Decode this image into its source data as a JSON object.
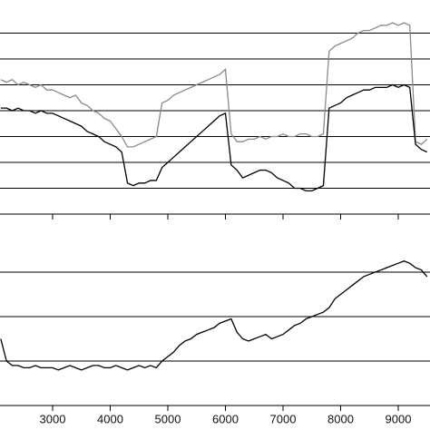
{
  "chart_data": [
    {
      "type": "line",
      "x": [
        2100,
        2200,
        2300,
        2400,
        2500,
        2600,
        2700,
        2800,
        2900,
        3000,
        3100,
        3200,
        3300,
        3400,
        3500,
        3600,
        3700,
        3800,
        3900,
        4000,
        4100,
        4200,
        4300,
        4400,
        4500,
        4600,
        4700,
        4800,
        4900,
        5000,
        5100,
        5200,
        5300,
        5400,
        5500,
        5600,
        5700,
        5800,
        5900,
        6000,
        6100,
        6200,
        6300,
        6400,
        6500,
        6600,
        6700,
        6800,
        6900,
        7000,
        7100,
        7200,
        7300,
        7400,
        7500,
        7600,
        7700,
        7800,
        7900,
        8000,
        8100,
        8200,
        8300,
        8400,
        8500,
        8600,
        8700,
        8800,
        8900,
        9000,
        9100,
        9200,
        9300,
        9400,
        9500
      ],
      "series": [
        {
          "color": "#8a8a8a",
          "values": [
            5.2,
            5.1,
            5.2,
            5.0,
            5.1,
            5.0,
            4.9,
            5.0,
            4.8,
            4.8,
            4.7,
            4.6,
            4.5,
            4.6,
            4.3,
            4.2,
            4.0,
            3.9,
            3.7,
            3.6,
            3.3,
            3.0,
            2.6,
            2.6,
            2.7,
            2.8,
            2.9,
            3.0,
            4.3,
            4.4,
            4.6,
            4.7,
            4.8,
            4.9,
            5.0,
            5.1,
            5.2,
            5.3,
            5.4,
            5.6,
            3.1,
            2.8,
            2.8,
            2.9,
            2.9,
            3.0,
            2.9,
            3.0,
            3.0,
            3.1,
            3.0,
            3.0,
            3.1,
            3.1,
            3.0,
            3.0,
            3.1,
            6.3,
            6.5,
            6.6,
            6.7,
            6.8,
            7.0,
            7.1,
            7.1,
            7.2,
            7.3,
            7.3,
            7.4,
            7.3,
            7.4,
            7.3,
            2.8,
            2.7,
            2.9
          ]
        },
        {
          "color": "#000000",
          "values": [
            4.1,
            4.1,
            4.0,
            4.1,
            4.0,
            4.0,
            3.9,
            4.0,
            3.9,
            3.9,
            3.8,
            3.7,
            3.6,
            3.5,
            3.4,
            3.2,
            3.1,
            3.0,
            2.8,
            2.7,
            2.6,
            2.4,
            1.2,
            1.1,
            1.2,
            1.2,
            1.3,
            1.3,
            1.8,
            2.0,
            2.2,
            2.4,
            2.6,
            2.8,
            3.0,
            3.2,
            3.4,
            3.6,
            3.8,
            3.9,
            1.9,
            1.7,
            1.4,
            1.5,
            1.6,
            1.7,
            1.7,
            1.6,
            1.4,
            1.3,
            1.2,
            1.0,
            1.0,
            0.9,
            0.9,
            1.0,
            1.1,
            4.1,
            4.2,
            4.3,
            4.5,
            4.6,
            4.7,
            4.8,
            4.8,
            4.9,
            4.9,
            4.9,
            5.0,
            4.9,
            5.0,
            4.9,
            2.7,
            2.5,
            2.4
          ]
        }
      ],
      "xlim": [
        2087,
        9551
      ],
      "ylim": [
        0,
        8
      ],
      "ygrid": [
        1,
        2,
        3,
        4,
        5,
        6,
        7
      ],
      "xticks": [
        3000,
        4000,
        5000,
        6000,
        7000,
        8000,
        9000
      ],
      "show_xtick_labels": false
    },
    {
      "type": "line",
      "x": [
        2100,
        2200,
        2300,
        2400,
        2500,
        2600,
        2700,
        2800,
        2900,
        3000,
        3100,
        3200,
        3300,
        3400,
        3500,
        3600,
        3700,
        3800,
        3900,
        4000,
        4100,
        4200,
        4300,
        4400,
        4500,
        4600,
        4700,
        4800,
        4900,
        5000,
        5100,
        5200,
        5300,
        5400,
        5500,
        5600,
        5700,
        5800,
        5900,
        6000,
        6100,
        6200,
        6300,
        6400,
        6500,
        6600,
        6700,
        6800,
        6900,
        7000,
        7100,
        7200,
        7300,
        7400,
        7500,
        7600,
        7700,
        7800,
        7900,
        8000,
        8100,
        8200,
        8300,
        8400,
        8500,
        8600,
        8700,
        8800,
        8900,
        9000,
        9100,
        9200,
        9300,
        9400,
        9500
      ],
      "series": [
        {
          "color": "#000000",
          "values": [
            1.5,
            1.0,
            0.9,
            0.9,
            0.85,
            0.85,
            0.9,
            0.85,
            0.85,
            0.85,
            0.8,
            0.85,
            0.9,
            0.85,
            0.8,
            0.85,
            0.9,
            0.9,
            0.85,
            0.85,
            0.9,
            0.85,
            0.8,
            0.85,
            0.9,
            0.85,
            0.9,
            0.85,
            1.0,
            1.1,
            1.2,
            1.35,
            1.45,
            1.5,
            1.6,
            1.65,
            1.7,
            1.75,
            1.85,
            1.9,
            1.95,
            1.65,
            1.5,
            1.45,
            1.5,
            1.55,
            1.6,
            1.5,
            1.55,
            1.6,
            1.7,
            1.8,
            1.85,
            1.95,
            2.0,
            2.05,
            2.1,
            2.2,
            2.4,
            2.5,
            2.6,
            2.7,
            2.8,
            2.9,
            2.95,
            3.0,
            3.05,
            3.1,
            3.15,
            3.2,
            3.25,
            3.2,
            3.1,
            3.05,
            2.9
          ]
        }
      ],
      "xlim": [
        2087,
        9551
      ],
      "ylim": [
        0,
        4
      ],
      "ygrid": [
        1,
        2,
        3
      ],
      "xticks": [
        3000,
        4000,
        5000,
        6000,
        7000,
        8000,
        9000
      ],
      "show_xtick_labels": true
    }
  ]
}
